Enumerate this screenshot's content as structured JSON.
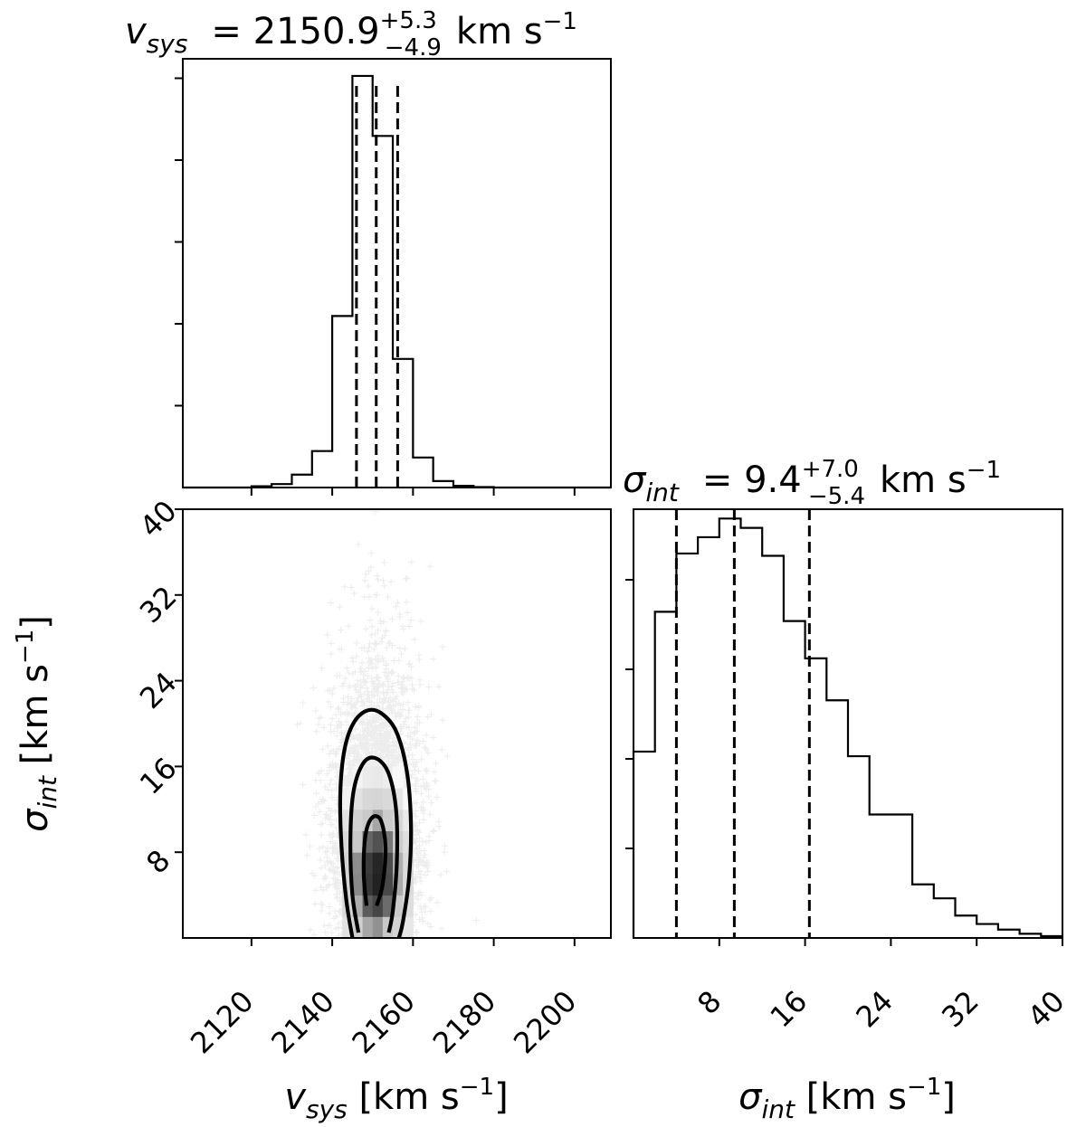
{
  "chart_data": [
    {
      "type": "histogram",
      "panel": "v_sys marginal",
      "title": {
        "symbol": "v",
        "symbol_sub": "sys",
        "text": "= 2150.9",
        "plus": "+5.3",
        "minus": "−4.9",
        "unit": "km s",
        "unit_exp": "−1"
      },
      "xlim": [
        2103,
        2209
      ],
      "bin_edges": [
        2120,
        2125,
        2130,
        2135,
        2140,
        2145,
        2150,
        2155,
        2160,
        2165,
        2170,
        2175,
        2180
      ],
      "counts": [
        0.003,
        0.008,
        0.03,
        0.085,
        0.4,
        0.96,
        0.82,
        0.3,
        0.07,
        0.015,
        0.004,
        0.001
      ],
      "ylim": [
        0,
        1.0
      ],
      "quantiles": [
        2146.0,
        2150.9,
        2156.2
      ]
    },
    {
      "type": "scatter",
      "panel": "2D posterior",
      "xlim": [
        2103,
        2209
      ],
      "ylim": [
        0,
        40
      ],
      "xticks": [
        "2120",
        "2140",
        "2160",
        "2180",
        "2200"
      ],
      "yticks": [
        "8",
        "16",
        "24",
        "32",
        "40"
      ],
      "xlabel": {
        "symbol": "v",
        "symbol_sub": "sys",
        "unit": "[km s",
        "unit_exp": "−1",
        "close": "]"
      },
      "ylabel": {
        "symbol": "σ",
        "symbol_sub": "int",
        "unit": "[km s",
        "unit_exp": "−1",
        "close": "]"
      },
      "center": [
        2150.9,
        9.4
      ],
      "spread": [
        5.1,
        6.2
      ],
      "contours": [
        {
          "level": "inner",
          "points": [
            [
              2148.5,
              3.0
            ],
            [
              2147.8,
              6.0
            ],
            [
              2148.2,
              9.5
            ],
            [
              2149.8,
              11.2
            ],
            [
              2152.0,
              11.0
            ],
            [
              2153.2,
              8.5
            ],
            [
              2152.5,
              5.0
            ],
            [
              2151.0,
              3.0
            ]
          ]
        },
        {
          "level": "middle",
          "points": [
            [
              2146.5,
              0.5
            ],
            [
              2145.0,
              4.0
            ],
            [
              2144.5,
              9.0
            ],
            [
              2145.2,
              13.5
            ],
            [
              2147.5,
              16.2
            ],
            [
              2150.5,
              16.8
            ],
            [
              2153.8,
              15.5
            ],
            [
              2155.8,
              12.0
            ],
            [
              2156.0,
              7.0
            ],
            [
              2155.0,
              2.5
            ],
            [
              2154.0,
              0.5
            ]
          ]
        },
        {
          "level": "outer",
          "points": [
            [
              2145.0,
              0.0
            ],
            [
              2143.5,
              3.5
            ],
            [
              2142.3,
              8.5
            ],
            [
              2142.0,
              13.5
            ],
            [
              2143.0,
              17.5
            ],
            [
              2145.2,
              20.0
            ],
            [
              2148.5,
              21.2
            ],
            [
              2152.0,
              21.0
            ],
            [
              2155.8,
              19.3
            ],
            [
              2158.5,
              15.5
            ],
            [
              2159.5,
              10.5
            ],
            [
              2159.0,
              5.5
            ],
            [
              2157.5,
              1.5
            ],
            [
              2156.5,
              0.0
            ]
          ]
        }
      ]
    },
    {
      "type": "histogram",
      "panel": "sigma_int marginal",
      "title": {
        "symbol": "σ",
        "symbol_sub": "int",
        "text": "= 9.4",
        "plus": "+7.0",
        "minus": "−5.4",
        "unit": "km s",
        "unit_exp": "−1"
      },
      "xlim": [
        0,
        40
      ],
      "xticks": [
        "8",
        "16",
        "24",
        "32",
        "40"
      ],
      "xlabel": {
        "symbol": "σ",
        "symbol_sub": "int",
        "unit": "[km s",
        "unit_exp": "−1",
        "close": "]"
      },
      "bin_edges": [
        0,
        2,
        4,
        6,
        8,
        10,
        12,
        14,
        16,
        18,
        20,
        22,
        24,
        26,
        28,
        30,
        32,
        34,
        36,
        38,
        40
      ],
      "counts": [
        0.4,
        0.7,
        0.825,
        0.86,
        0.9,
        0.88,
        0.82,
        0.68,
        0.6,
        0.51,
        0.39,
        0.265,
        0.265,
        0.115,
        0.085,
        0.048,
        0.03,
        0.018,
        0.009,
        0.004
      ],
      "ylim": [
        0,
        0.92
      ],
      "quantiles": [
        4.0,
        9.4,
        16.4
      ]
    }
  ]
}
